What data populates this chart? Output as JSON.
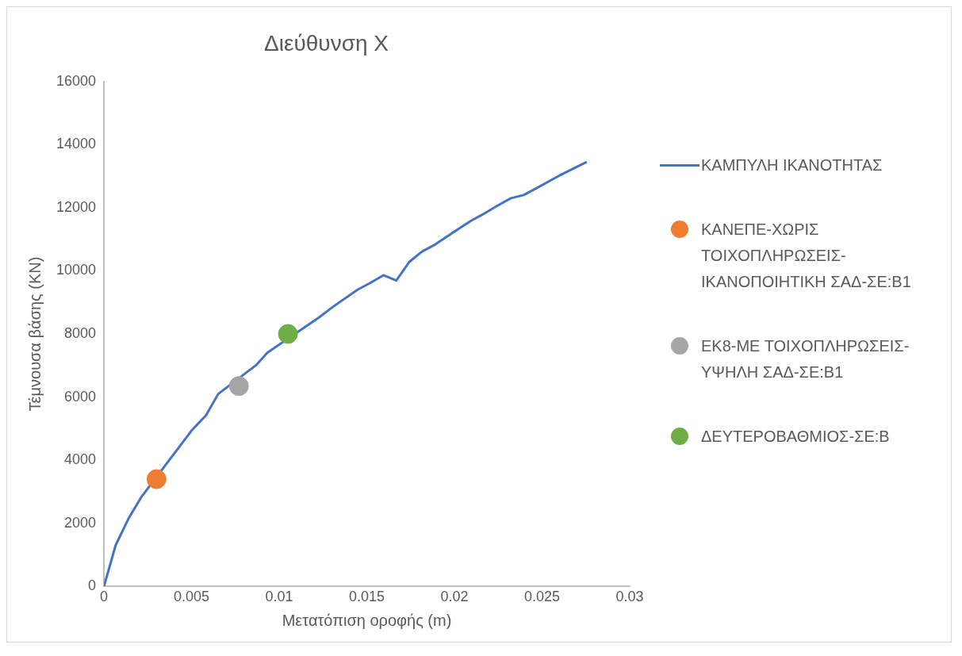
{
  "chart_data": {
    "type": "line",
    "title": "Διεύθυνση X",
    "xlabel": "Μετατόπιση οροφής (m)",
    "ylabel": "Τέμνουσα βάσης (KN)",
    "xlim": [
      0,
      0.03
    ],
    "xticks": [
      0,
      0.005,
      0.01,
      0.015,
      0.02,
      0.025,
      0.03
    ],
    "ylim": [
      0,
      16000
    ],
    "yticks": [
      0,
      2000,
      4000,
      6000,
      8000,
      10000,
      12000,
      14000,
      16000
    ],
    "grid": false,
    "legend": "right",
    "marker": "none",
    "line_style": "solid",
    "series": [
      {
        "name": "ΚΑΜΠΥΛΗ ΙΚΑΝΟΤΗΤΑΣ",
        "color": "#4472c4",
        "x": [
          0,
          0.00067,
          0.0014,
          0.00214,
          0.005,
          0.00582,
          0.00652,
          0.00868,
          0.00933,
          0.01227,
          0.01309,
          0.01447,
          0.01521,
          0.01595,
          0.01668,
          0.01742,
          0.01815,
          0.01889,
          0.02027,
          0.02093,
          0.02175,
          0.02248,
          0.02322,
          0.02395,
          0.02469,
          0.026,
          0.02755
        ],
        "values": [
          0,
          1310,
          2150,
          2840,
          4940,
          5420,
          6100,
          7010,
          7410,
          8520,
          8870,
          9400,
          9620,
          9860,
          9690,
          10280,
          10610,
          10830,
          11340,
          11580,
          11830,
          12070,
          12300,
          12400,
          12620,
          13020,
          13450
        ]
      },
      {
        "type": "scatter",
        "name": "ΚΑΝΕΠΕ-ΧΩΡΙΣ ΤΟΙΧΟΠΛΗΡΩΣΕΙΣ-ΙΚΑΝΟΠΟΙΗΤΙΚΗ ΣΑΔ-ΣΕ:Β1",
        "color": "#ed7d31",
        "marker": "circle",
        "x": [
          0.003
        ],
        "values": [
          3400
        ]
      },
      {
        "type": "scatter",
        "name": "ΕΚ8-ΜΕ ΤΟΙΧΟΠΛΗΡΩΣΕΙΣ-ΥΨΗΛΗ ΣΑΔ-ΣΕ:Β1",
        "color": "#a5a5a5",
        "marker": "circle",
        "x": [
          0.0077
        ],
        "values": [
          6350
        ]
      },
      {
        "type": "scatter",
        "name": "ΔΕΥΤΕΡΟΒΑΘΜΙΟΣ-ΣΕ:Β",
        "color": "#70ad47",
        "marker": "circle",
        "x": [
          0.0105
        ],
        "values": [
          8000
        ]
      }
    ]
  }
}
